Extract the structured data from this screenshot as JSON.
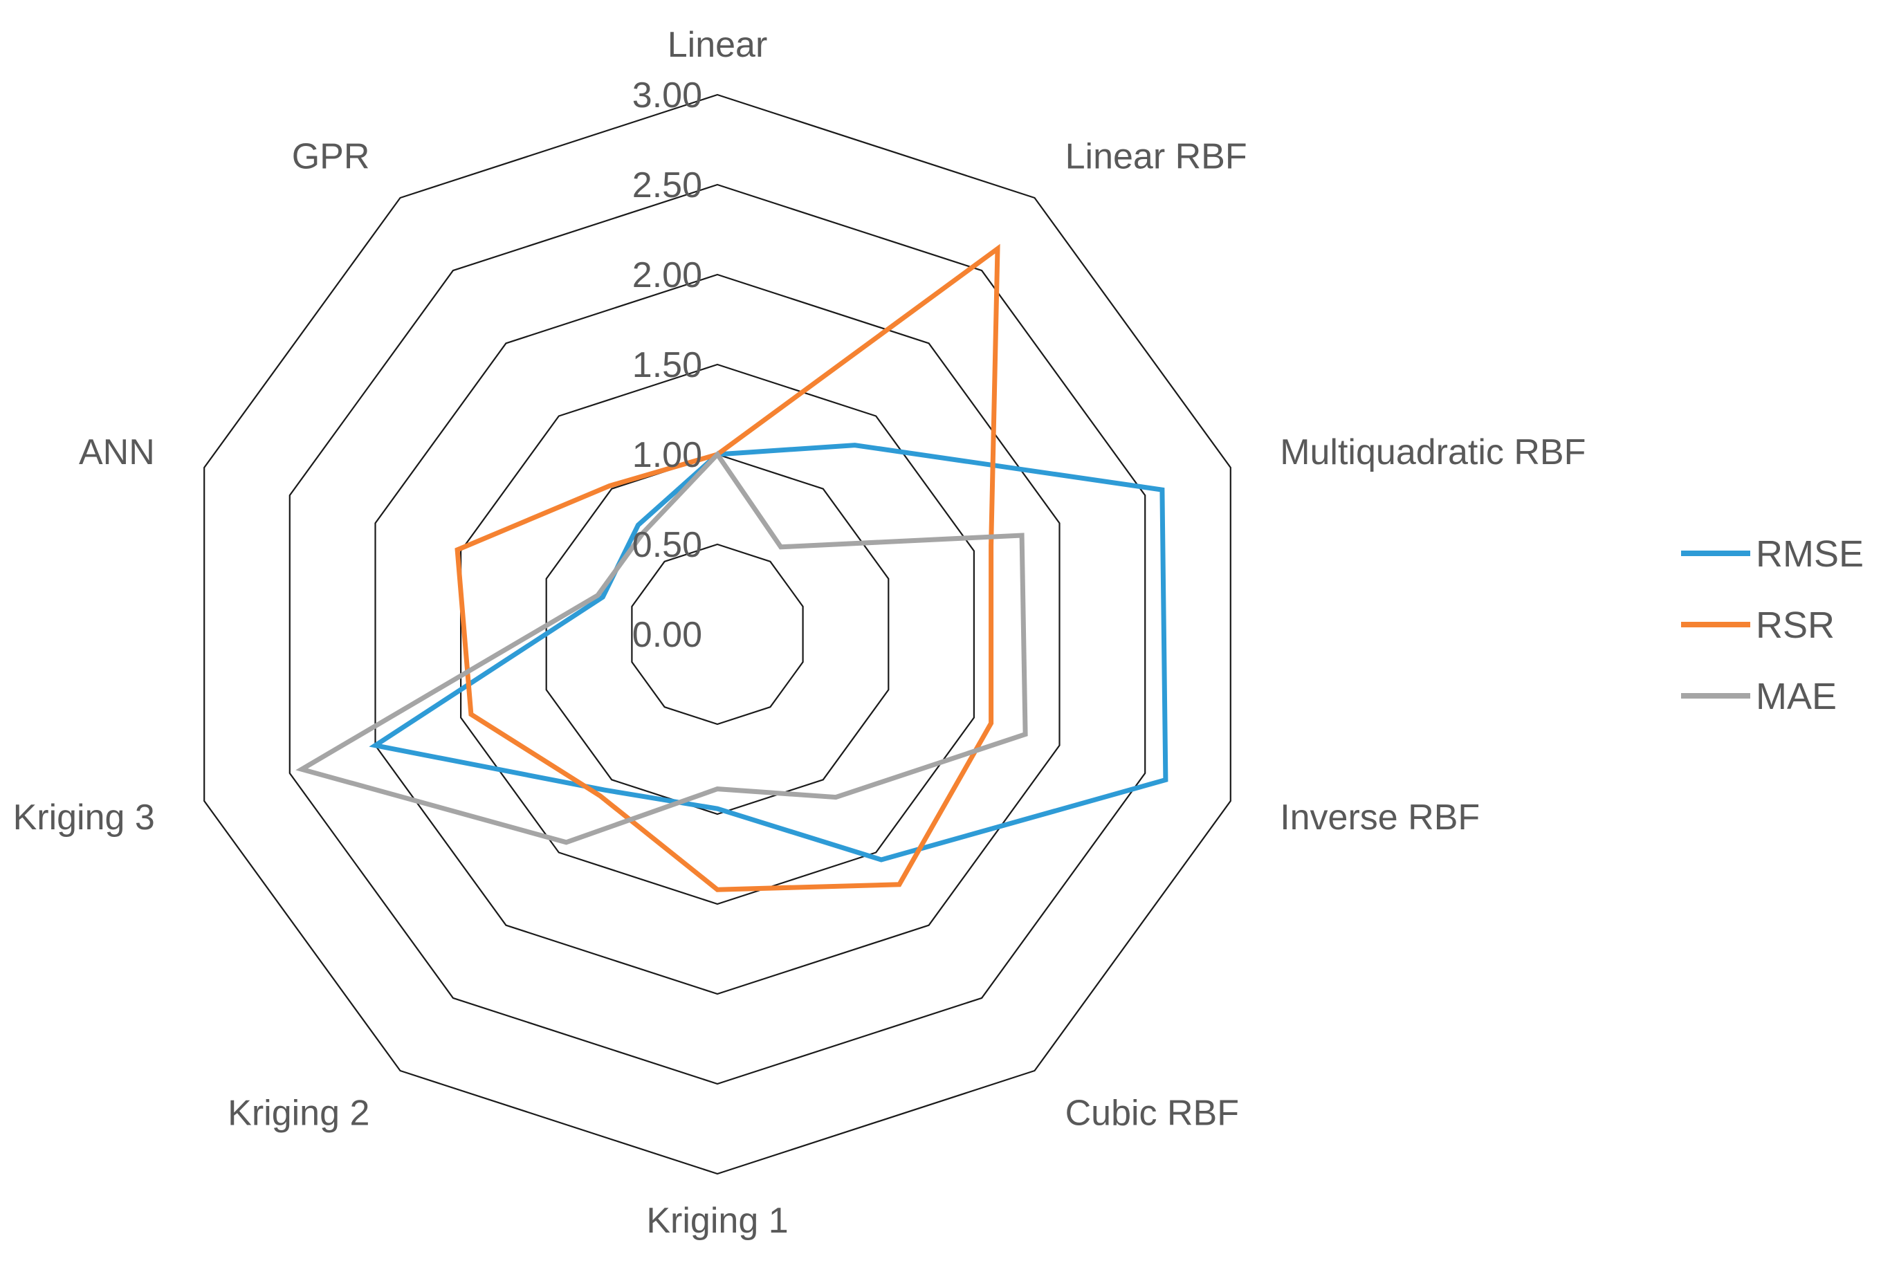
{
  "chart_data": {
    "type": "radar",
    "categories": [
      "Linear",
      "Linear RBF",
      "Multiquadratic RBF",
      "Inverse RBF",
      "Cubic RBF",
      "Kriging 1",
      "Kriging 2",
      "Kriging 3",
      "ANN",
      "GPR"
    ],
    "rlim": [
      0,
      3
    ],
    "ticks": [
      "0.00",
      "0.50",
      "1.00",
      "1.50",
      "2.00",
      "2.50",
      "3.00"
    ],
    "tick_values": [
      0,
      0.5,
      1,
      1.5,
      2,
      2.5,
      3
    ],
    "grid": true,
    "legend_position": "right",
    "series": [
      {
        "name": "RMSE",
        "color": "#2E9BD6",
        "values": [
          1.0,
          1.3,
          2.6,
          2.62,
          1.55,
          0.97,
          1.07,
          2.0,
          0.67,
          0.75
        ]
      },
      {
        "name": "RSR",
        "color": "#F58231",
        "values": [
          1.0,
          2.65,
          1.6,
          1.6,
          1.72,
          1.42,
          1.11,
          1.44,
          1.52,
          1.02
        ]
      },
      {
        "name": "MAE",
        "color": "#A5A5A5",
        "values": [
          1.0,
          0.6,
          1.78,
          1.8,
          1.12,
          0.86,
          1.43,
          2.43,
          0.7,
          0.7
        ]
      }
    ]
  }
}
